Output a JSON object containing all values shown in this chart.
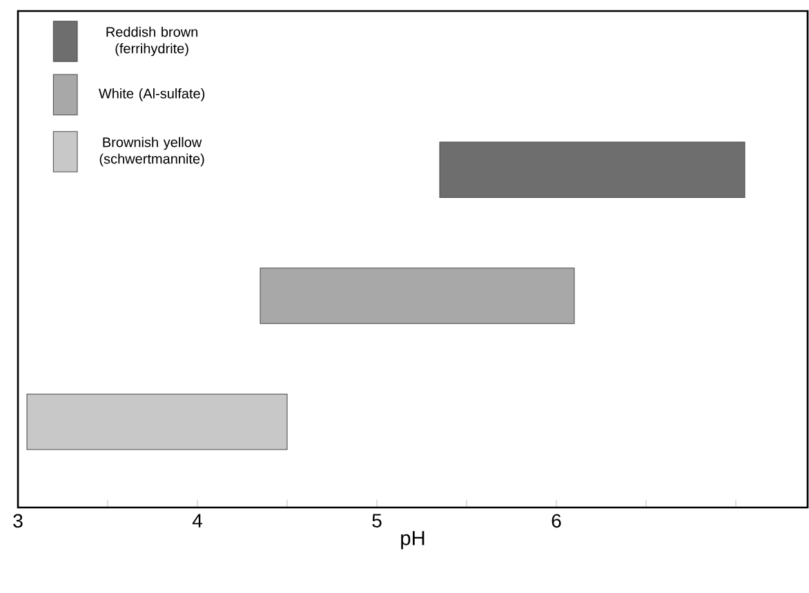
{
  "chart_data": {
    "type": "bar",
    "orientation": "horizontal",
    "xlabel": "pH",
    "categories": [
      null,
      null,
      null
    ],
    "values": [
      1.7,
      1.75,
      1.45
    ],
    "base": [
      5.35,
      4.35,
      3.05
    ],
    "colors": [
      "#6e6e6e",
      "#a8a8a8",
      "#c8c8c8"
    ],
    "xlim": [
      3,
      7.4
    ],
    "xticks": [
      {
        "value": 3,
        "label": "3"
      },
      {
        "value": 3.5,
        "label": null
      },
      {
        "value": 4,
        "label": "4"
      },
      {
        "value": 4.5,
        "label": null
      },
      {
        "value": 5,
        "label": "5"
      },
      {
        "value": 5.5,
        "label": null
      },
      {
        "value": 6,
        "label": "6"
      },
      {
        "value": 6.5,
        "label": null
      },
      {
        "value": 7,
        "label": null
      }
    ],
    "annotations": [
      "Reddish brown (ferrihydrite)",
      "White (Al-sulfate)",
      "Brownish yellow (schwertmannite)"
    ],
    "grid": false
  }
}
